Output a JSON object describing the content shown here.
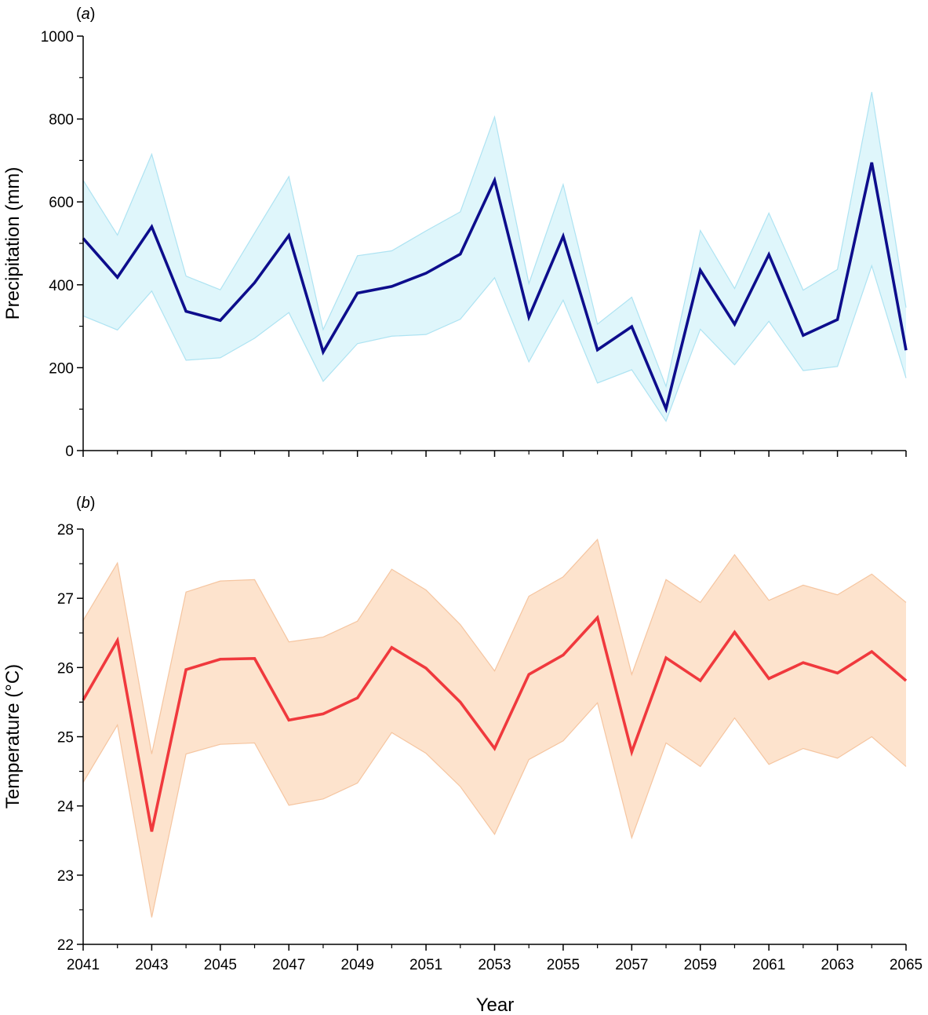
{
  "figure": {
    "xlabel": "Year"
  },
  "chart_data": [
    {
      "type": "line",
      "panel_label": "(a)",
      "panel_letter": "a",
      "title": "",
      "xlabel": "Year",
      "ylabel": "Precipitation (mm)",
      "xlim": [
        2041,
        2065
      ],
      "ylim": [
        0,
        1000
      ],
      "yticks": [
        0,
        200,
        400,
        600,
        800,
        1000
      ],
      "xticks": [
        2041,
        2043,
        2045,
        2047,
        2049,
        2051,
        2053,
        2055,
        2057,
        2059,
        2061,
        2063,
        2065
      ],
      "grid": false,
      "x": [
        2041,
        2042,
        2043,
        2044,
        2045,
        2046,
        2047,
        2048,
        2049,
        2050,
        2051,
        2052,
        2053,
        2054,
        2055,
        2056,
        2057,
        2058,
        2059,
        2060,
        2061,
        2062,
        2063,
        2064,
        2065
      ],
      "series": [
        {
          "values": [
            512,
            418,
            540,
            336,
            314,
            405,
            519,
            238,
            380,
            396,
            428,
            474,
            652,
            322,
            517,
            243,
            299,
            101,
            435,
            305,
            473,
            278,
            316,
            695,
            242
          ],
          "upper": [
            652,
            520,
            715,
            421,
            388,
            525,
            661,
            292,
            470,
            482,
            530,
            576,
            805,
            403,
            642,
            305,
            370,
            155,
            531,
            391,
            573,
            387,
            437,
            865,
            345
          ],
          "lower": [
            325,
            291,
            385,
            218,
            224,
            271,
            333,
            167,
            258,
            276,
            280,
            317,
            417,
            214,
            363,
            163,
            195,
            71,
            293,
            207,
            312,
            193,
            203,
            446,
            175
          ],
          "line_color": "#0d0d8c",
          "band_color": "#dff6fb",
          "band_edge_color": "#aee3f2"
        }
      ]
    },
    {
      "type": "line",
      "panel_label": "(b)",
      "panel_letter": "b",
      "title": "",
      "xlabel": "Year",
      "ylabel": "Temperature (°C)",
      "xlim": [
        2041,
        2065
      ],
      "ylim": [
        22,
        28
      ],
      "yticks": [
        22,
        23,
        24,
        25,
        26,
        27,
        28
      ],
      "xticks": [
        2041,
        2043,
        2045,
        2047,
        2049,
        2051,
        2053,
        2055,
        2057,
        2059,
        2061,
        2063,
        2065
      ],
      "grid": false,
      "x": [
        2041,
        2042,
        2043,
        2044,
        2045,
        2046,
        2047,
        2048,
        2049,
        2050,
        2051,
        2052,
        2053,
        2054,
        2055,
        2056,
        2057,
        2058,
        2059,
        2060,
        2061,
        2062,
        2063,
        2064,
        2065
      ],
      "series": [
        {
          "values": [
            25.53,
            26.39,
            23.63,
            25.97,
            26.12,
            26.13,
            25.24,
            25.33,
            25.56,
            26.29,
            25.99,
            25.5,
            24.83,
            25.9,
            26.18,
            26.72,
            24.78,
            26.14,
            25.81,
            26.51,
            25.84,
            26.07,
            25.92,
            26.23,
            25.81
          ],
          "upper": [
            26.68,
            27.51,
            24.75,
            27.09,
            27.25,
            27.27,
            26.37,
            26.44,
            26.67,
            27.42,
            27.12,
            26.62,
            25.95,
            27.03,
            27.31,
            27.85,
            25.9,
            27.27,
            26.94,
            27.63,
            26.97,
            27.19,
            27.05,
            27.35,
            26.94
          ],
          "lower": [
            24.34,
            25.17,
            22.39,
            24.75,
            24.89,
            24.91,
            24.01,
            24.1,
            24.33,
            25.06,
            24.76,
            24.28,
            23.59,
            24.67,
            24.94,
            25.49,
            23.54,
            24.91,
            24.57,
            25.27,
            24.6,
            24.83,
            24.69,
            25.0,
            24.57
          ],
          "line_color": "#f0393d",
          "band_color": "#fde3cd",
          "band_edge_color": "#f5c5a0"
        }
      ]
    }
  ]
}
